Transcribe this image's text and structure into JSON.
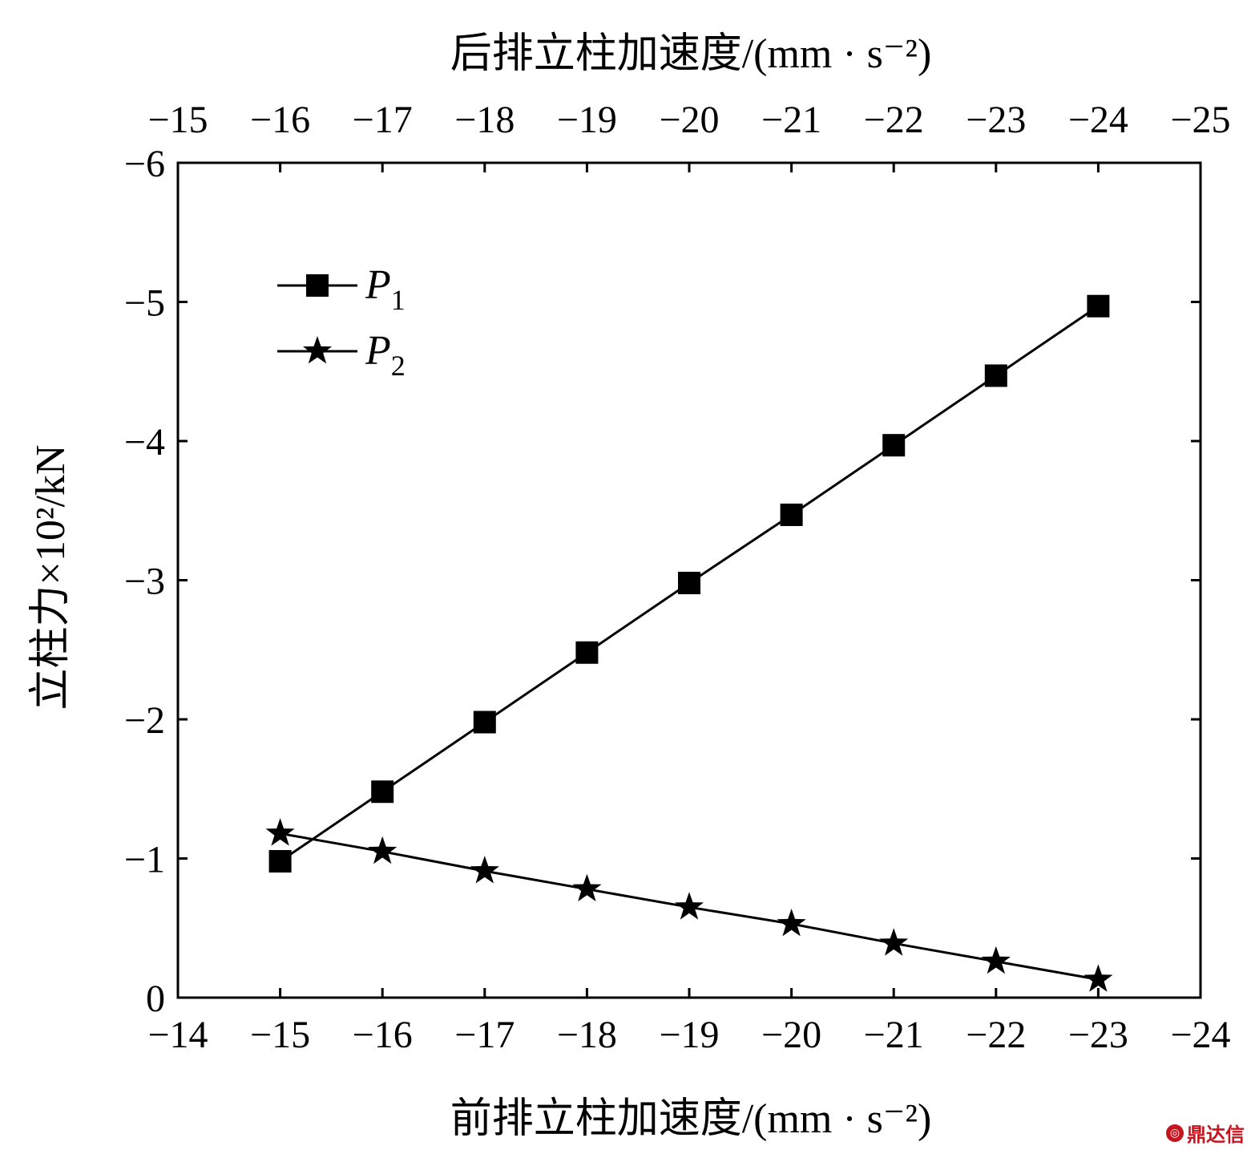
{
  "chart_data": {
    "type": "line",
    "xlabel": "前排立柱加速度/(mm · s⁻²)",
    "x2label": "后排立柱加速度/(mm · s⁻²)",
    "ylabel": "立柱力×10²/kN",
    "xlim": [
      -14,
      -24
    ],
    "x2lim": [
      -15,
      -25
    ],
    "ylim": [
      0,
      -6
    ],
    "x_ticks": [
      "−14",
      "−15",
      "−16",
      "−17",
      "−18",
      "−19",
      "−20",
      "−21",
      "−22",
      "−23",
      "−24"
    ],
    "x2_ticks": [
      "−15",
      "−16",
      "−17",
      "−18",
      "−19",
      "−20",
      "−21",
      "−22",
      "−23",
      "−24",
      "−25"
    ],
    "y_ticks": [
      "0",
      "−1",
      "−2",
      "−3",
      "−4",
      "−5",
      "−6"
    ],
    "x": [
      -15,
      -16,
      -17,
      -18,
      -19,
      -20,
      -21,
      -22,
      -23
    ],
    "series": [
      {
        "name": "P1",
        "label_main": "P",
        "label_sub": "1",
        "marker": "square",
        "values": [
          -0.98,
          -1.48,
          -1.98,
          -2.48,
          -2.98,
          -3.47,
          -3.97,
          -4.47,
          -4.97
        ]
      },
      {
        "name": "P2",
        "label_main": "P",
        "label_sub": "2",
        "marker": "star",
        "values": [
          -1.18,
          -1.05,
          -0.91,
          -0.78,
          -0.65,
          -0.53,
          -0.39,
          -0.26,
          -0.13
        ]
      }
    ],
    "legend_position": "top-left",
    "grid": false
  },
  "watermark": {
    "text": "鼎达信",
    "icon": "logo-icon"
  }
}
